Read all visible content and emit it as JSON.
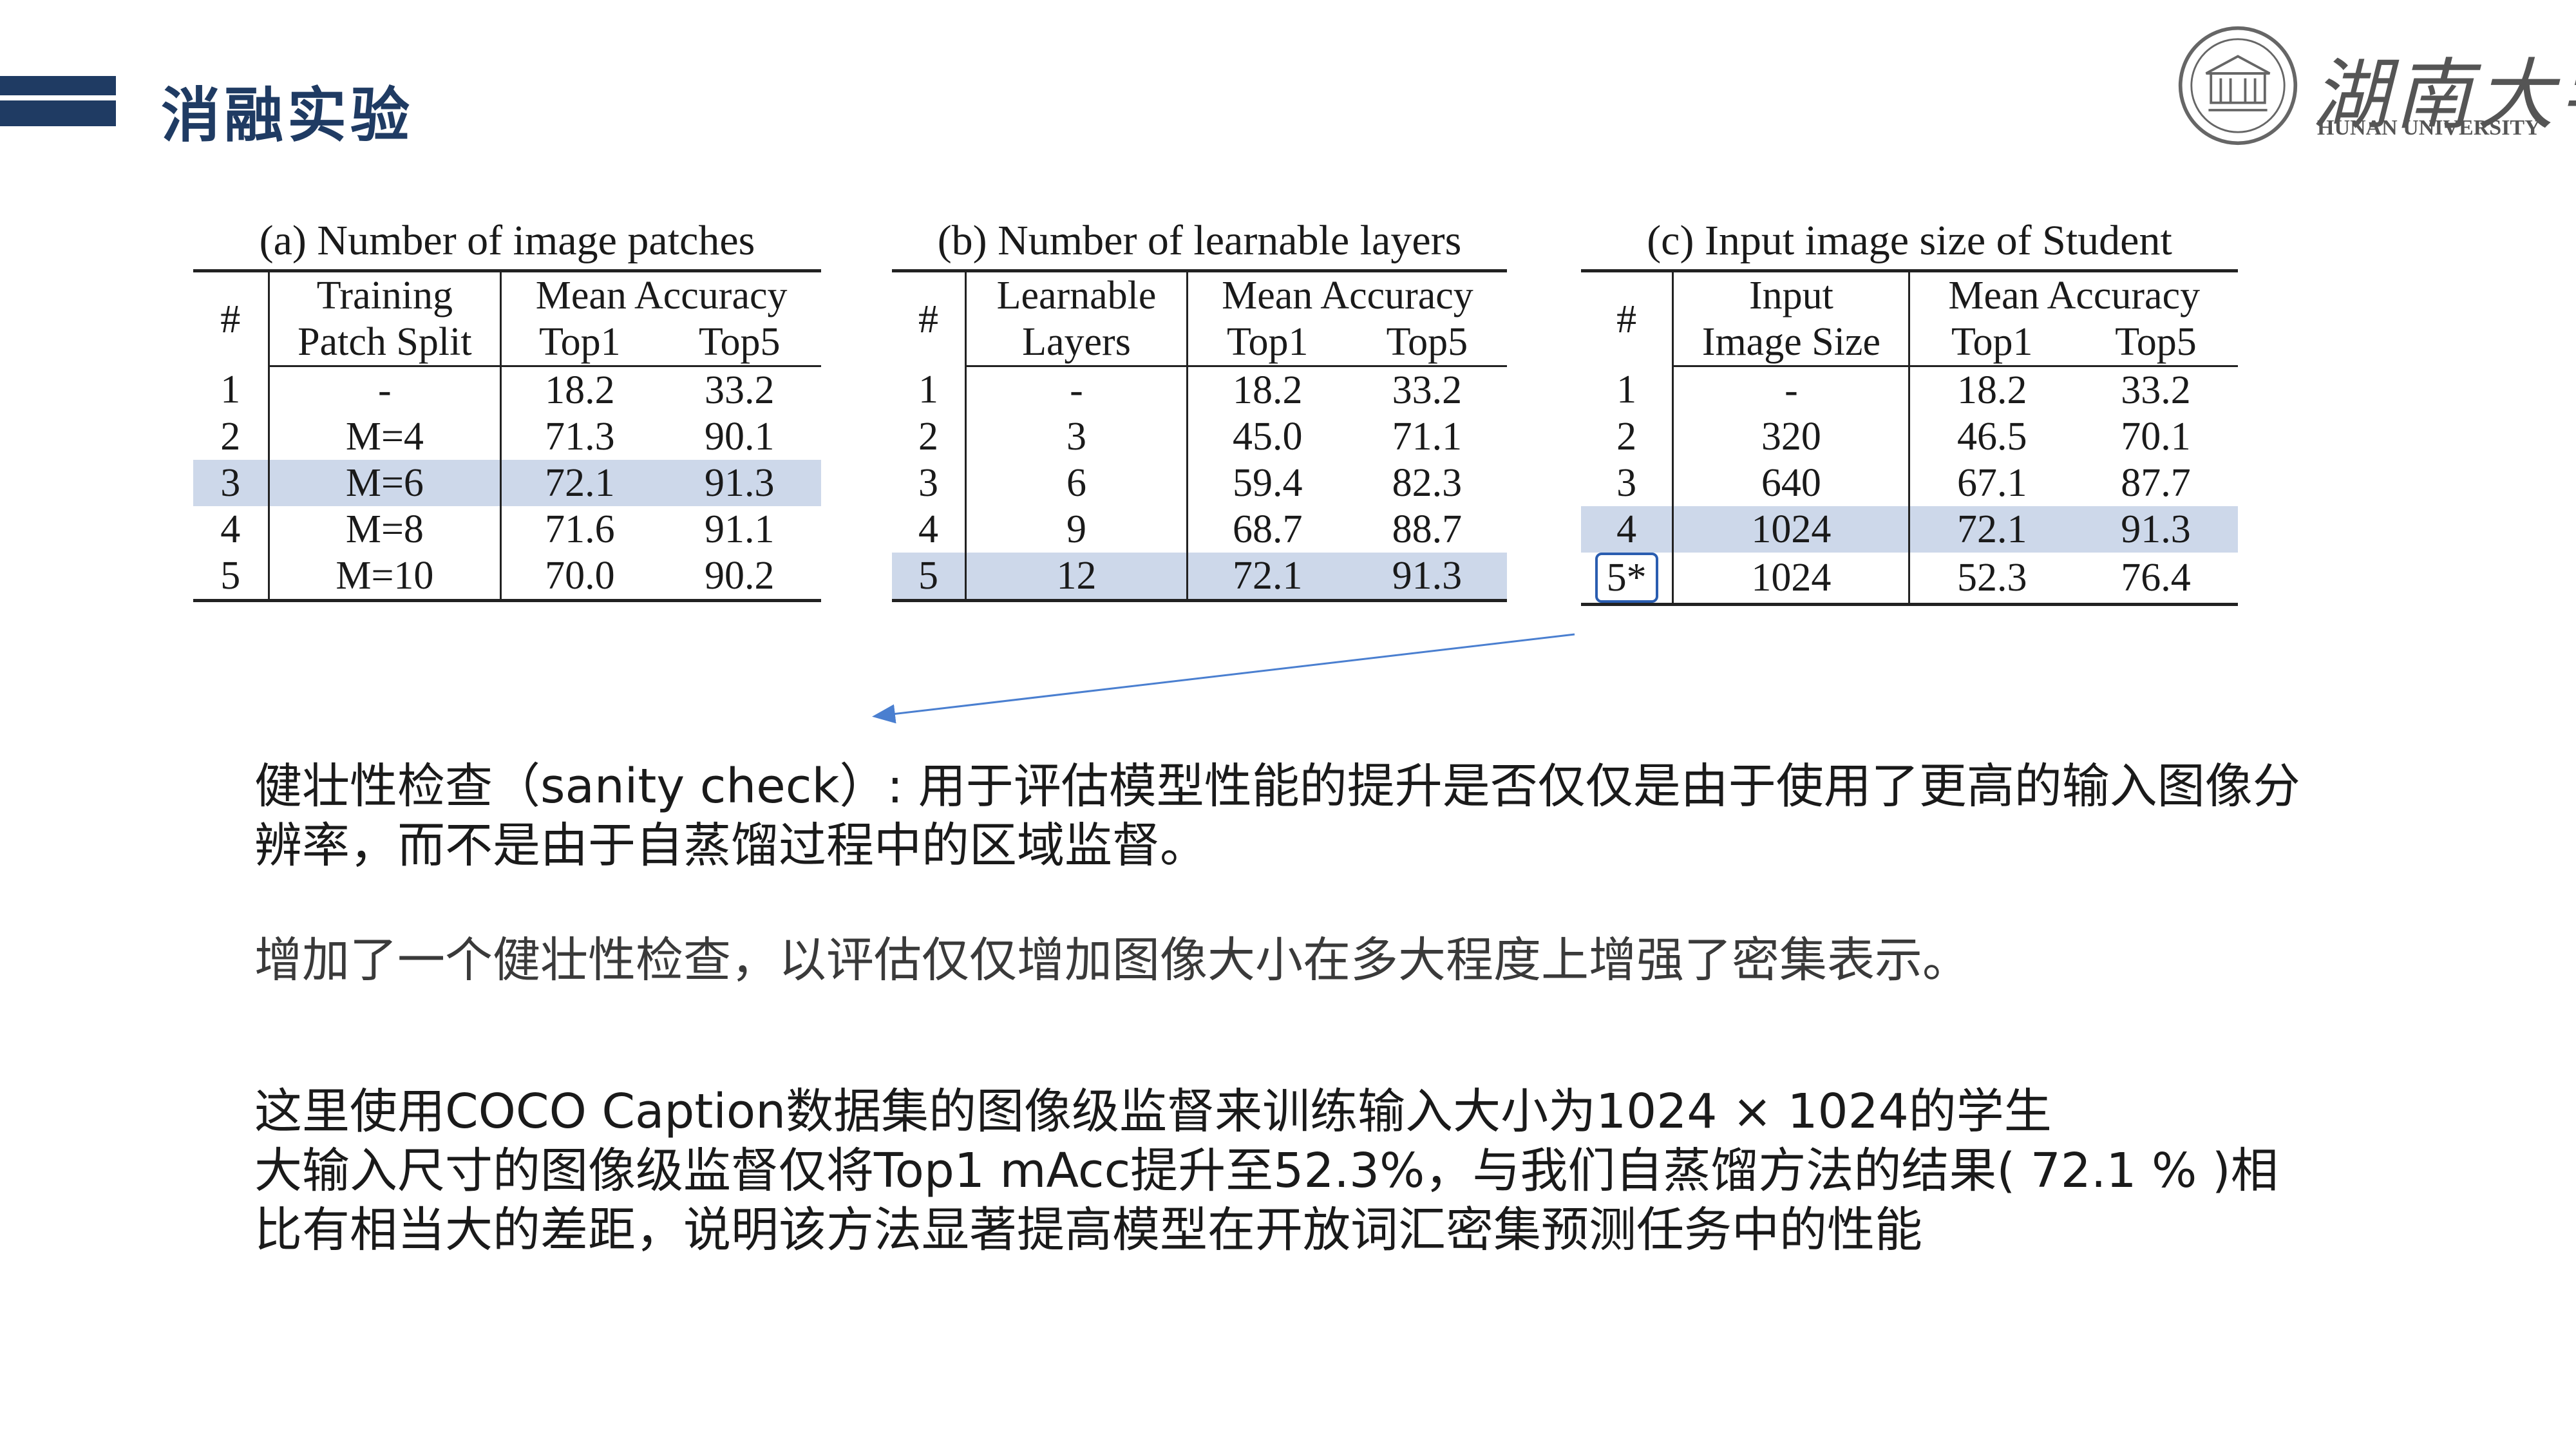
{
  "slide": {
    "title": "消融实验",
    "logo_cn": "湖南大学",
    "logo_en": "HUNAN UNIVERSITY"
  },
  "tables": {
    "a": {
      "caption": "(a) Number of image patches",
      "col_hash": "#",
      "col_param_line1": "Training",
      "col_param_line2": "Patch Split",
      "col_mean": "Mean Accuracy",
      "col_top1": "Top1",
      "col_top5": "Top5",
      "rows": [
        {
          "id": "1",
          "param": "-",
          "top1": "18.2",
          "top5": "33.2"
        },
        {
          "id": "2",
          "param": "M=4",
          "top1": "71.3",
          "top5": "90.1"
        },
        {
          "id": "3",
          "param": "M=6",
          "top1": "72.1",
          "top5": "91.3"
        },
        {
          "id": "4",
          "param": "M=8",
          "top1": "71.6",
          "top5": "91.1"
        },
        {
          "id": "5",
          "param": "M=10",
          "top1": "70.0",
          "top5": "90.2"
        }
      ],
      "highlight_row": "3"
    },
    "b": {
      "caption": "(b) Number of learnable layers",
      "col_hash": "#",
      "col_param_line1": "Learnable",
      "col_param_line2": "Layers",
      "col_mean": "Mean Accuracy",
      "col_top1": "Top1",
      "col_top5": "Top5",
      "rows": [
        {
          "id": "1",
          "param": "-",
          "top1": "18.2",
          "top5": "33.2"
        },
        {
          "id": "2",
          "param": "3",
          "top1": "45.0",
          "top5": "71.1"
        },
        {
          "id": "3",
          "param": "6",
          "top1": "59.4",
          "top5": "82.3"
        },
        {
          "id": "4",
          "param": "9",
          "top1": "68.7",
          "top5": "88.7"
        },
        {
          "id": "5",
          "param": "12",
          "top1": "72.1",
          "top5": "91.3"
        }
      ],
      "highlight_row": "5"
    },
    "c": {
      "caption": "(c) Input image size of Student",
      "col_hash": "#",
      "col_param_line1": "Input",
      "col_param_line2": "Image Size",
      "col_mean": "Mean Accuracy",
      "col_top1": "Top1",
      "col_top5": "Top5",
      "rows": [
        {
          "id": "1",
          "param": "-",
          "top1": "18.2",
          "top5": "33.2"
        },
        {
          "id": "2",
          "param": "320",
          "top1": "46.5",
          "top5": "70.1"
        },
        {
          "id": "3",
          "param": "640",
          "top1": "67.1",
          "top5": "87.7"
        },
        {
          "id": "4",
          "param": "1024",
          "top1": "72.1",
          "top5": "91.3"
        },
        {
          "id": "5*",
          "param": "1024",
          "top1": "52.3",
          "top5": "76.4"
        }
      ],
      "highlight_row": "4",
      "boxed_row": "5*"
    }
  },
  "text": {
    "p1": "健壮性检查（sanity check）: 用于评估模型性能的提升是否仅仅是由于使用了更高的输入图像分辨率，而不是由于自蒸馏过程中的区域监督。",
    "p2": "增加了一个健壮性检查，以评估仅仅增加图像大小在多大程度上增强了密集表示。",
    "p3_line1": "这里使用COCO Caption数据集的图像级监督来训练输入大小为1024 × 1024的学生",
    "p3_line2": "大输入尺寸的图像级监督仅将Top1 mAcc提升至52.3%，与我们自蒸馏方法的结果( 72.1 % )相比有相当大的差距，说明该方法显著提高模型在开放词汇密集预测任务中的性能"
  },
  "colors": {
    "title": "#1f3b63",
    "highlight": "#cdd8ea",
    "arrow": "#4a7fd0"
  }
}
